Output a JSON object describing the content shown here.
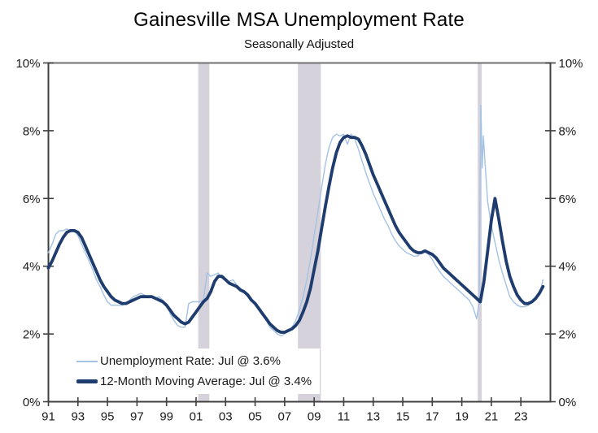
{
  "chart": {
    "title": "Gainesville MSA Unemployment Rate",
    "subtitle": "Seasonally Adjusted"
  },
  "chart_data": {
    "type": "line",
    "title": "Gainesville MSA Unemployment Rate",
    "subtitle": "Seasonally Adjusted",
    "xlim": [
      1991,
      2025
    ],
    "ylim": [
      0,
      10
    ],
    "grid": false,
    "legend_position": "inside-bottom-left",
    "y_ticks": [
      {
        "value": 0,
        "label": "0%"
      },
      {
        "value": 2,
        "label": "2%"
      },
      {
        "value": 4,
        "label": "4%"
      },
      {
        "value": 6,
        "label": "6%"
      },
      {
        "value": 8,
        "label": "8%"
      },
      {
        "value": 10,
        "label": "10%"
      }
    ],
    "x_ticks": [
      {
        "value": 1991,
        "label": "91"
      },
      {
        "value": 1993,
        "label": "93"
      },
      {
        "value": 1995,
        "label": "95"
      },
      {
        "value": 1997,
        "label": "97"
      },
      {
        "value": 1999,
        "label": "99"
      },
      {
        "value": 2001,
        "label": "01"
      },
      {
        "value": 2003,
        "label": "03"
      },
      {
        "value": 2005,
        "label": "05"
      },
      {
        "value": 2007,
        "label": "07"
      },
      {
        "value": 2009,
        "label": "09"
      },
      {
        "value": 2011,
        "label": "11"
      },
      {
        "value": 2013,
        "label": "13"
      },
      {
        "value": 2015,
        "label": "15"
      },
      {
        "value": 2017,
        "label": "17"
      },
      {
        "value": 2019,
        "label": "19"
      },
      {
        "value": 2021,
        "label": "21"
      },
      {
        "value": 2023,
        "label": "23"
      }
    ],
    "recession_bands": [
      {
        "start": 2001.15,
        "end": 2001.9
      },
      {
        "start": 2007.9,
        "end": 2009.45
      },
      {
        "start": 2020.08,
        "end": 2020.35
      }
    ],
    "colors": {
      "recession_band": "#D6D2DC",
      "axis": "#404040",
      "plot_top_border": "#707070",
      "tick_label": "#1A1A1A",
      "background": "#FFFFFF"
    },
    "series": [
      {
        "name": "Unemployment Rate",
        "legend_label": "Unemployment Rate: Jul @ 3.6%",
        "latest": {
          "month": "Jul",
          "value_pct": 3.6
        },
        "color": "#A3C2E4",
        "line_width": 1.4,
        "points": [
          [
            1991,
            4.4
          ],
          [
            1991.25,
            4.65
          ],
          [
            1991.5,
            4.95
          ],
          [
            1991.75,
            5.05
          ],
          [
            1992,
            5.05
          ],
          [
            1992.25,
            5.1
          ],
          [
            1992.5,
            5.05
          ],
          [
            1992.75,
            5.05
          ],
          [
            1993,
            4.9
          ],
          [
            1993.25,
            4.65
          ],
          [
            1993.5,
            4.4
          ],
          [
            1993.75,
            4.15
          ],
          [
            1994,
            3.9
          ],
          [
            1994.25,
            3.6
          ],
          [
            1994.5,
            3.4
          ],
          [
            1994.75,
            3.15
          ],
          [
            1995,
            2.95
          ],
          [
            1995.25,
            2.85
          ],
          [
            1995.5,
            2.85
          ],
          [
            1995.75,
            2.85
          ],
          [
            1996,
            2.85
          ],
          [
            1996.25,
            2.9
          ],
          [
            1996.5,
            3.0
          ],
          [
            1996.75,
            3.1
          ],
          [
            1997,
            3.15
          ],
          [
            1997.25,
            3.2
          ],
          [
            1997.5,
            3.15
          ],
          [
            1997.75,
            3.1
          ],
          [
            1998,
            3.1
          ],
          [
            1998.25,
            3.05
          ],
          [
            1998.5,
            3.1
          ],
          [
            1998.75,
            3.0
          ],
          [
            1999,
            2.85
          ],
          [
            1999.25,
            2.6
          ],
          [
            1999.5,
            2.4
          ],
          [
            1999.75,
            2.25
          ],
          [
            2000,
            2.2
          ],
          [
            2000.25,
            2.2
          ],
          [
            2000.5,
            2.9
          ],
          [
            2000.75,
            2.95
          ],
          [
            2001,
            2.95
          ],
          [
            2001.25,
            2.95
          ],
          [
            2001.5,
            3.0
          ],
          [
            2001.75,
            3.8
          ],
          [
            2002,
            3.7
          ],
          [
            2002.25,
            3.75
          ],
          [
            2002.5,
            3.8
          ],
          [
            2002.75,
            3.65
          ],
          [
            2003,
            3.6
          ],
          [
            2003.25,
            3.55
          ],
          [
            2003.5,
            3.6
          ],
          [
            2003.75,
            3.45
          ],
          [
            2004,
            3.35
          ],
          [
            2004.25,
            3.25
          ],
          [
            2004.5,
            3.15
          ],
          [
            2004.75,
            3.0
          ],
          [
            2005,
            2.85
          ],
          [
            2005.25,
            2.7
          ],
          [
            2005.5,
            2.55
          ],
          [
            2005.75,
            2.4
          ],
          [
            2006,
            2.2
          ],
          [
            2006.25,
            2.1
          ],
          [
            2006.5,
            2.0
          ],
          [
            2006.75,
            1.95
          ],
          [
            2007,
            2.0
          ],
          [
            2007.25,
            2.1
          ],
          [
            2007.5,
            2.2
          ],
          [
            2007.75,
            2.4
          ],
          [
            2008,
            2.7
          ],
          [
            2008.25,
            3.1
          ],
          [
            2008.5,
            3.6
          ],
          [
            2008.75,
            4.2
          ],
          [
            2009,
            4.9
          ],
          [
            2009.25,
            5.6
          ],
          [
            2009.5,
            6.3
          ],
          [
            2009.75,
            7.0
          ],
          [
            2010,
            7.5
          ],
          [
            2010.25,
            7.8
          ],
          [
            2010.5,
            7.9
          ],
          [
            2010.75,
            7.85
          ],
          [
            2011,
            7.9
          ],
          [
            2011.25,
            7.6
          ],
          [
            2011.5,
            7.9
          ],
          [
            2011.75,
            7.75
          ],
          [
            2012,
            7.45
          ],
          [
            2012.25,
            7.1
          ],
          [
            2012.5,
            6.75
          ],
          [
            2012.75,
            6.45
          ],
          [
            2013,
            6.15
          ],
          [
            2013.25,
            5.9
          ],
          [
            2013.5,
            5.65
          ],
          [
            2013.75,
            5.4
          ],
          [
            2014,
            5.2
          ],
          [
            2014.25,
            4.95
          ],
          [
            2014.5,
            4.75
          ],
          [
            2014.75,
            4.6
          ],
          [
            2015,
            4.5
          ],
          [
            2015.25,
            4.4
          ],
          [
            2015.5,
            4.35
          ],
          [
            2015.75,
            4.3
          ],
          [
            2016,
            4.3
          ],
          [
            2016.25,
            4.4
          ],
          [
            2016.5,
            4.45
          ],
          [
            2016.75,
            4.35
          ],
          [
            2017,
            4.2
          ],
          [
            2017.25,
            4.0
          ],
          [
            2017.5,
            3.85
          ],
          [
            2017.75,
            3.7
          ],
          [
            2018,
            3.6
          ],
          [
            2018.25,
            3.5
          ],
          [
            2018.5,
            3.4
          ],
          [
            2018.75,
            3.3
          ],
          [
            2019,
            3.2
          ],
          [
            2019.25,
            3.1
          ],
          [
            2019.5,
            3.0
          ],
          [
            2019.75,
            2.8
          ],
          [
            2020,
            2.45
          ],
          [
            2020.17,
            2.9
          ],
          [
            2020.29,
            8.75
          ],
          [
            2020.38,
            6.9
          ],
          [
            2020.46,
            7.85
          ],
          [
            2020.58,
            7.0
          ],
          [
            2020.75,
            5.9
          ],
          [
            2021,
            5.2
          ],
          [
            2021.25,
            4.7
          ],
          [
            2021.5,
            4.2
          ],
          [
            2021.75,
            3.8
          ],
          [
            2022,
            3.45
          ],
          [
            2022.25,
            3.1
          ],
          [
            2022.5,
            2.95
          ],
          [
            2022.75,
            2.85
          ],
          [
            2023,
            2.8
          ],
          [
            2023.25,
            2.8
          ],
          [
            2023.5,
            2.85
          ],
          [
            2023.75,
            2.95
          ],
          [
            2024,
            3.05
          ],
          [
            2024.17,
            3.2
          ],
          [
            2024.33,
            3.3
          ],
          [
            2024.5,
            3.6
          ]
        ]
      },
      {
        "name": "12-Month Moving Average",
        "legend_label": "12-Month Moving Average: Jul @ 3.4%",
        "latest": {
          "month": "Jul",
          "value_pct": 3.4
        },
        "color": "#1E3C6E",
        "line_width": 3.8,
        "points": [
          [
            1991,
            3.95
          ],
          [
            1991.25,
            4.15
          ],
          [
            1991.5,
            4.4
          ],
          [
            1991.75,
            4.65
          ],
          [
            1992,
            4.85
          ],
          [
            1992.25,
            5.0
          ],
          [
            1992.5,
            5.05
          ],
          [
            1992.75,
            5.05
          ],
          [
            1993,
            5.0
          ],
          [
            1993.25,
            4.85
          ],
          [
            1993.5,
            4.6
          ],
          [
            1993.75,
            4.35
          ],
          [
            1994,
            4.1
          ],
          [
            1994.25,
            3.85
          ],
          [
            1994.5,
            3.6
          ],
          [
            1994.75,
            3.4
          ],
          [
            1995,
            3.25
          ],
          [
            1995.25,
            3.1
          ],
          [
            1995.5,
            3.0
          ],
          [
            1995.75,
            2.95
          ],
          [
            1996,
            2.9
          ],
          [
            1996.25,
            2.9
          ],
          [
            1996.5,
            2.95
          ],
          [
            1996.75,
            3.0
          ],
          [
            1997,
            3.05
          ],
          [
            1997.25,
            3.1
          ],
          [
            1997.5,
            3.1
          ],
          [
            1997.75,
            3.1
          ],
          [
            1998,
            3.1
          ],
          [
            1998.25,
            3.05
          ],
          [
            1998.5,
            3.0
          ],
          [
            1998.75,
            2.95
          ],
          [
            1999,
            2.85
          ],
          [
            1999.25,
            2.7
          ],
          [
            1999.5,
            2.55
          ],
          [
            1999.75,
            2.45
          ],
          [
            2000,
            2.35
          ],
          [
            2000.25,
            2.3
          ],
          [
            2000.5,
            2.35
          ],
          [
            2000.75,
            2.5
          ],
          [
            2001,
            2.65
          ],
          [
            2001.25,
            2.8
          ],
          [
            2001.5,
            2.95
          ],
          [
            2001.75,
            3.05
          ],
          [
            2002,
            3.25
          ],
          [
            2002.25,
            3.55
          ],
          [
            2002.5,
            3.7
          ],
          [
            2002.75,
            3.7
          ],
          [
            2003,
            3.6
          ],
          [
            2003.25,
            3.5
          ],
          [
            2003.5,
            3.45
          ],
          [
            2003.75,
            3.4
          ],
          [
            2004,
            3.3
          ],
          [
            2004.25,
            3.25
          ],
          [
            2004.5,
            3.15
          ],
          [
            2004.75,
            3.0
          ],
          [
            2005,
            2.9
          ],
          [
            2005.25,
            2.75
          ],
          [
            2005.5,
            2.6
          ],
          [
            2005.75,
            2.45
          ],
          [
            2006,
            2.3
          ],
          [
            2006.25,
            2.2
          ],
          [
            2006.5,
            2.1
          ],
          [
            2006.75,
            2.05
          ],
          [
            2007,
            2.05
          ],
          [
            2007.25,
            2.1
          ],
          [
            2007.5,
            2.15
          ],
          [
            2007.75,
            2.25
          ],
          [
            2008,
            2.4
          ],
          [
            2008.25,
            2.65
          ],
          [
            2008.5,
            2.95
          ],
          [
            2008.75,
            3.35
          ],
          [
            2009,
            3.9
          ],
          [
            2009.25,
            4.45
          ],
          [
            2009.5,
            5.1
          ],
          [
            2009.75,
            5.75
          ],
          [
            2010,
            6.35
          ],
          [
            2010.25,
            6.9
          ],
          [
            2010.5,
            7.35
          ],
          [
            2010.75,
            7.65
          ],
          [
            2011,
            7.8
          ],
          [
            2011.25,
            7.85
          ],
          [
            2011.5,
            7.8
          ],
          [
            2011.75,
            7.8
          ],
          [
            2012,
            7.75
          ],
          [
            2012.25,
            7.55
          ],
          [
            2012.5,
            7.3
          ],
          [
            2012.75,
            7.0
          ],
          [
            2013,
            6.7
          ],
          [
            2013.25,
            6.45
          ],
          [
            2013.5,
            6.2
          ],
          [
            2013.75,
            5.95
          ],
          [
            2014,
            5.7
          ],
          [
            2014.25,
            5.45
          ],
          [
            2014.5,
            5.2
          ],
          [
            2014.75,
            5.0
          ],
          [
            2015,
            4.85
          ],
          [
            2015.25,
            4.7
          ],
          [
            2015.5,
            4.55
          ],
          [
            2015.75,
            4.45
          ],
          [
            2016,
            4.4
          ],
          [
            2016.25,
            4.4
          ],
          [
            2016.5,
            4.45
          ],
          [
            2016.75,
            4.4
          ],
          [
            2017,
            4.35
          ],
          [
            2017.25,
            4.25
          ],
          [
            2017.5,
            4.1
          ],
          [
            2017.75,
            3.95
          ],
          [
            2018,
            3.85
          ],
          [
            2018.25,
            3.75
          ],
          [
            2018.5,
            3.65
          ],
          [
            2018.75,
            3.55
          ],
          [
            2019,
            3.45
          ],
          [
            2019.25,
            3.35
          ],
          [
            2019.5,
            3.25
          ],
          [
            2019.75,
            3.15
          ],
          [
            2020,
            3.05
          ],
          [
            2020.25,
            2.95
          ],
          [
            2020.5,
            3.55
          ],
          [
            2020.75,
            4.45
          ],
          [
            2021,
            5.35
          ],
          [
            2021.25,
            6.0
          ],
          [
            2021.5,
            5.4
          ],
          [
            2021.75,
            4.75
          ],
          [
            2022,
            4.15
          ],
          [
            2022.25,
            3.7
          ],
          [
            2022.5,
            3.4
          ],
          [
            2022.75,
            3.15
          ],
          [
            2023,
            3.0
          ],
          [
            2023.25,
            2.9
          ],
          [
            2023.5,
            2.9
          ],
          [
            2023.75,
            2.95
          ],
          [
            2024,
            3.05
          ],
          [
            2024.25,
            3.2
          ],
          [
            2024.5,
            3.4
          ]
        ]
      }
    ]
  }
}
